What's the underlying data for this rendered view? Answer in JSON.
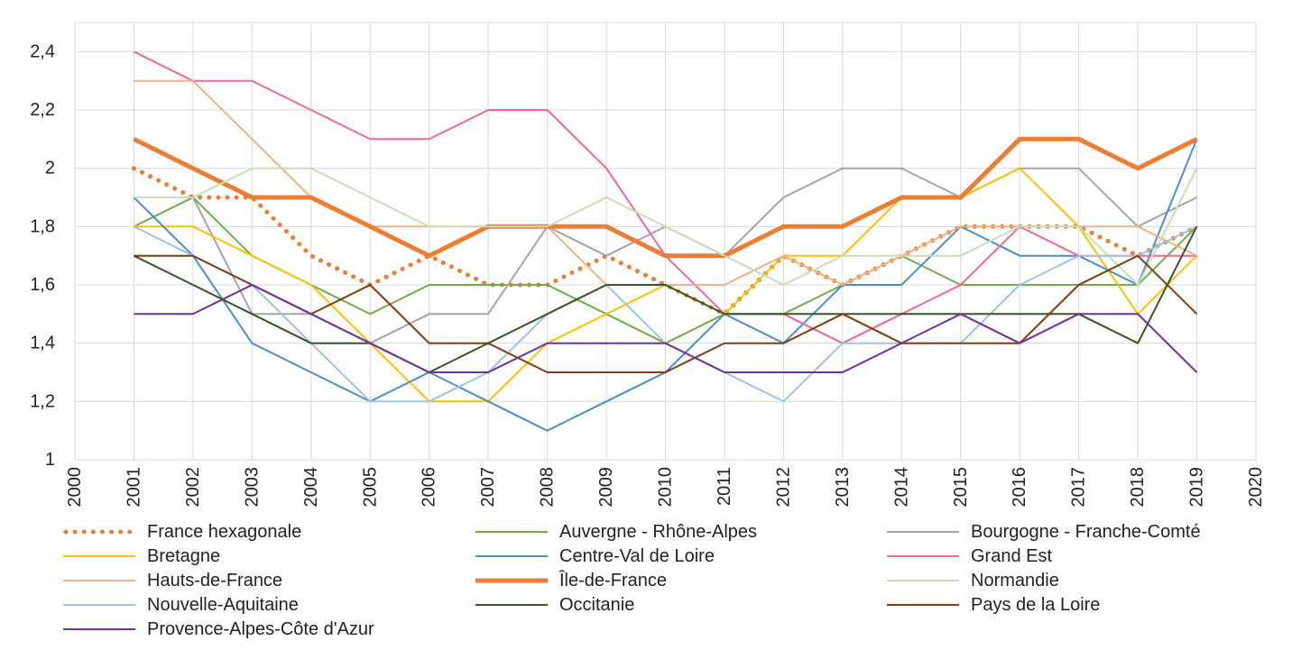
{
  "chart_data": {
    "type": "line",
    "title": "",
    "xlabel": "",
    "ylabel": "",
    "xlim": [
      2000,
      2020
    ],
    "ylim": [
      1,
      2.5
    ],
    "x_ticks": [
      "2000",
      "2001",
      "2002",
      "2003",
      "2004",
      "2005",
      "2006",
      "2007",
      "2008",
      "2009",
      "2010",
      "2011",
      "2012",
      "2013",
      "2014",
      "2015",
      "2016",
      "2017",
      "2018",
      "2019",
      "2020"
    ],
    "y_ticks": [
      "1",
      "1,2",
      "1,4",
      "1,6",
      "1,8",
      "2",
      "2,2",
      "2,4"
    ],
    "grid": true,
    "legend_position": "bottom",
    "x": [
      2001,
      2002,
      2003,
      2004,
      2005,
      2006,
      2007,
      2008,
      2009,
      2010,
      2011,
      2012,
      2013,
      2014,
      2015,
      2016,
      2017,
      2018,
      2019
    ],
    "series": [
      {
        "name": "France hexagonale",
        "color": "#ED7D31",
        "style": "dotted",
        "width": 5,
        "values": [
          2.0,
          1.9,
          1.9,
          1.7,
          1.6,
          1.7,
          1.6,
          1.6,
          1.7,
          1.6,
          1.5,
          1.7,
          1.6,
          1.7,
          1.8,
          1.8,
          1.8,
          1.7,
          1.8
        ]
      },
      {
        "name": "Auvergne - Rhône-Alpes",
        "color": "#70AD47",
        "style": "solid",
        "width": 2,
        "values": [
          1.8,
          1.9,
          1.7,
          1.6,
          1.5,
          1.6,
          1.6,
          1.6,
          1.5,
          1.4,
          1.5,
          1.5,
          1.6,
          1.7,
          1.6,
          1.6,
          1.6,
          1.6,
          1.8
        ]
      },
      {
        "name": "Bourgogne - Franche-Comté",
        "color": "#A5A5A5",
        "style": "solid",
        "width": 2,
        "values": [
          1.9,
          1.9,
          1.5,
          1.5,
          1.4,
          1.5,
          1.5,
          1.8,
          1.7,
          1.8,
          1.7,
          1.9,
          2.0,
          2.0,
          1.9,
          2.0,
          2.0,
          1.8,
          1.9
        ]
      },
      {
        "name": "Bretagne",
        "color": "#FFC000",
        "style": "solid",
        "width": 2,
        "values": [
          1.8,
          1.8,
          1.7,
          1.6,
          1.4,
          1.2,
          1.2,
          1.4,
          1.5,
          1.6,
          1.5,
          1.7,
          1.7,
          1.9,
          1.9,
          2.0,
          1.8,
          1.5,
          1.7
        ]
      },
      {
        "name": "Centre-Val de Loire",
        "color": "#4A8FCC",
        "style": "solid",
        "width": 2,
        "values": [
          1.9,
          1.7,
          1.4,
          1.3,
          1.2,
          1.3,
          1.2,
          1.1,
          1.2,
          1.3,
          1.5,
          1.4,
          1.6,
          1.6,
          1.8,
          1.7,
          1.7,
          1.6,
          2.1
        ]
      },
      {
        "name": "Grand Est",
        "color": "#F2679D",
        "style": "solid",
        "width": 2,
        "values": [
          2.4,
          2.3,
          2.3,
          2.2,
          2.1,
          2.1,
          2.2,
          2.2,
          2.0,
          1.7,
          1.5,
          1.5,
          1.4,
          1.5,
          1.6,
          1.8,
          1.7,
          1.7,
          1.7
        ]
      },
      {
        "name": "Hauts-de-France",
        "color": "#F4B183",
        "style": "solid",
        "width": 2,
        "values": [
          2.3,
          2.3,
          2.1,
          1.9,
          1.8,
          1.8,
          1.8,
          1.8,
          1.6,
          1.6,
          1.6,
          1.7,
          1.6,
          1.7,
          1.8,
          1.8,
          1.8,
          1.8,
          1.7
        ]
      },
      {
        "name": "Île-de-France",
        "color": "#ED7D31",
        "style": "solid",
        "width": 5,
        "values": [
          2.1,
          2.0,
          1.9,
          1.9,
          1.8,
          1.7,
          1.8,
          1.8,
          1.8,
          1.7,
          1.7,
          1.8,
          1.8,
          1.9,
          1.9,
          2.1,
          2.1,
          2.0,
          2.1
        ]
      },
      {
        "name": "Normandie",
        "color": "#C5E0B4",
        "style": "solid",
        "width": 2,
        "values": [
          1.9,
          1.9,
          2.0,
          2.0,
          1.9,
          1.8,
          1.8,
          1.8,
          1.9,
          1.8,
          1.7,
          1.6,
          1.7,
          1.7,
          1.7,
          1.8,
          1.8,
          1.6,
          2.0
        ]
      },
      {
        "name": "Nouvelle-Aquitaine",
        "color": "#9DC3E6",
        "style": "solid",
        "width": 2,
        "values": [
          1.8,
          1.7,
          1.6,
          1.4,
          1.2,
          1.2,
          1.3,
          1.5,
          1.6,
          1.4,
          1.3,
          1.2,
          1.4,
          1.4,
          1.4,
          1.6,
          1.7,
          1.7,
          1.8
        ]
      },
      {
        "name": "Occitanie",
        "color": "#385723",
        "style": "solid",
        "width": 2,
        "values": [
          1.7,
          1.6,
          1.5,
          1.4,
          1.4,
          1.3,
          1.4,
          1.5,
          1.6,
          1.6,
          1.5,
          1.5,
          1.5,
          1.5,
          1.5,
          1.5,
          1.5,
          1.4,
          1.8
        ]
      },
      {
        "name": "Pays de la Loire",
        "color": "#843C0C",
        "style": "solid",
        "width": 2,
        "values": [
          1.7,
          1.7,
          1.6,
          1.5,
          1.6,
          1.4,
          1.4,
          1.3,
          1.3,
          1.3,
          1.4,
          1.4,
          1.5,
          1.4,
          1.4,
          1.4,
          1.6,
          1.7,
          1.5
        ]
      },
      {
        "name": "Provence-Alpes-Côte d'Azur",
        "color": "#7030A0",
        "style": "solid",
        "width": 2,
        "values": [
          1.5,
          1.5,
          1.6,
          1.5,
          1.4,
          1.3,
          1.3,
          1.4,
          1.4,
          1.4,
          1.3,
          1.3,
          1.3,
          1.4,
          1.5,
          1.4,
          1.5,
          1.5,
          1.3
        ]
      }
    ]
  }
}
